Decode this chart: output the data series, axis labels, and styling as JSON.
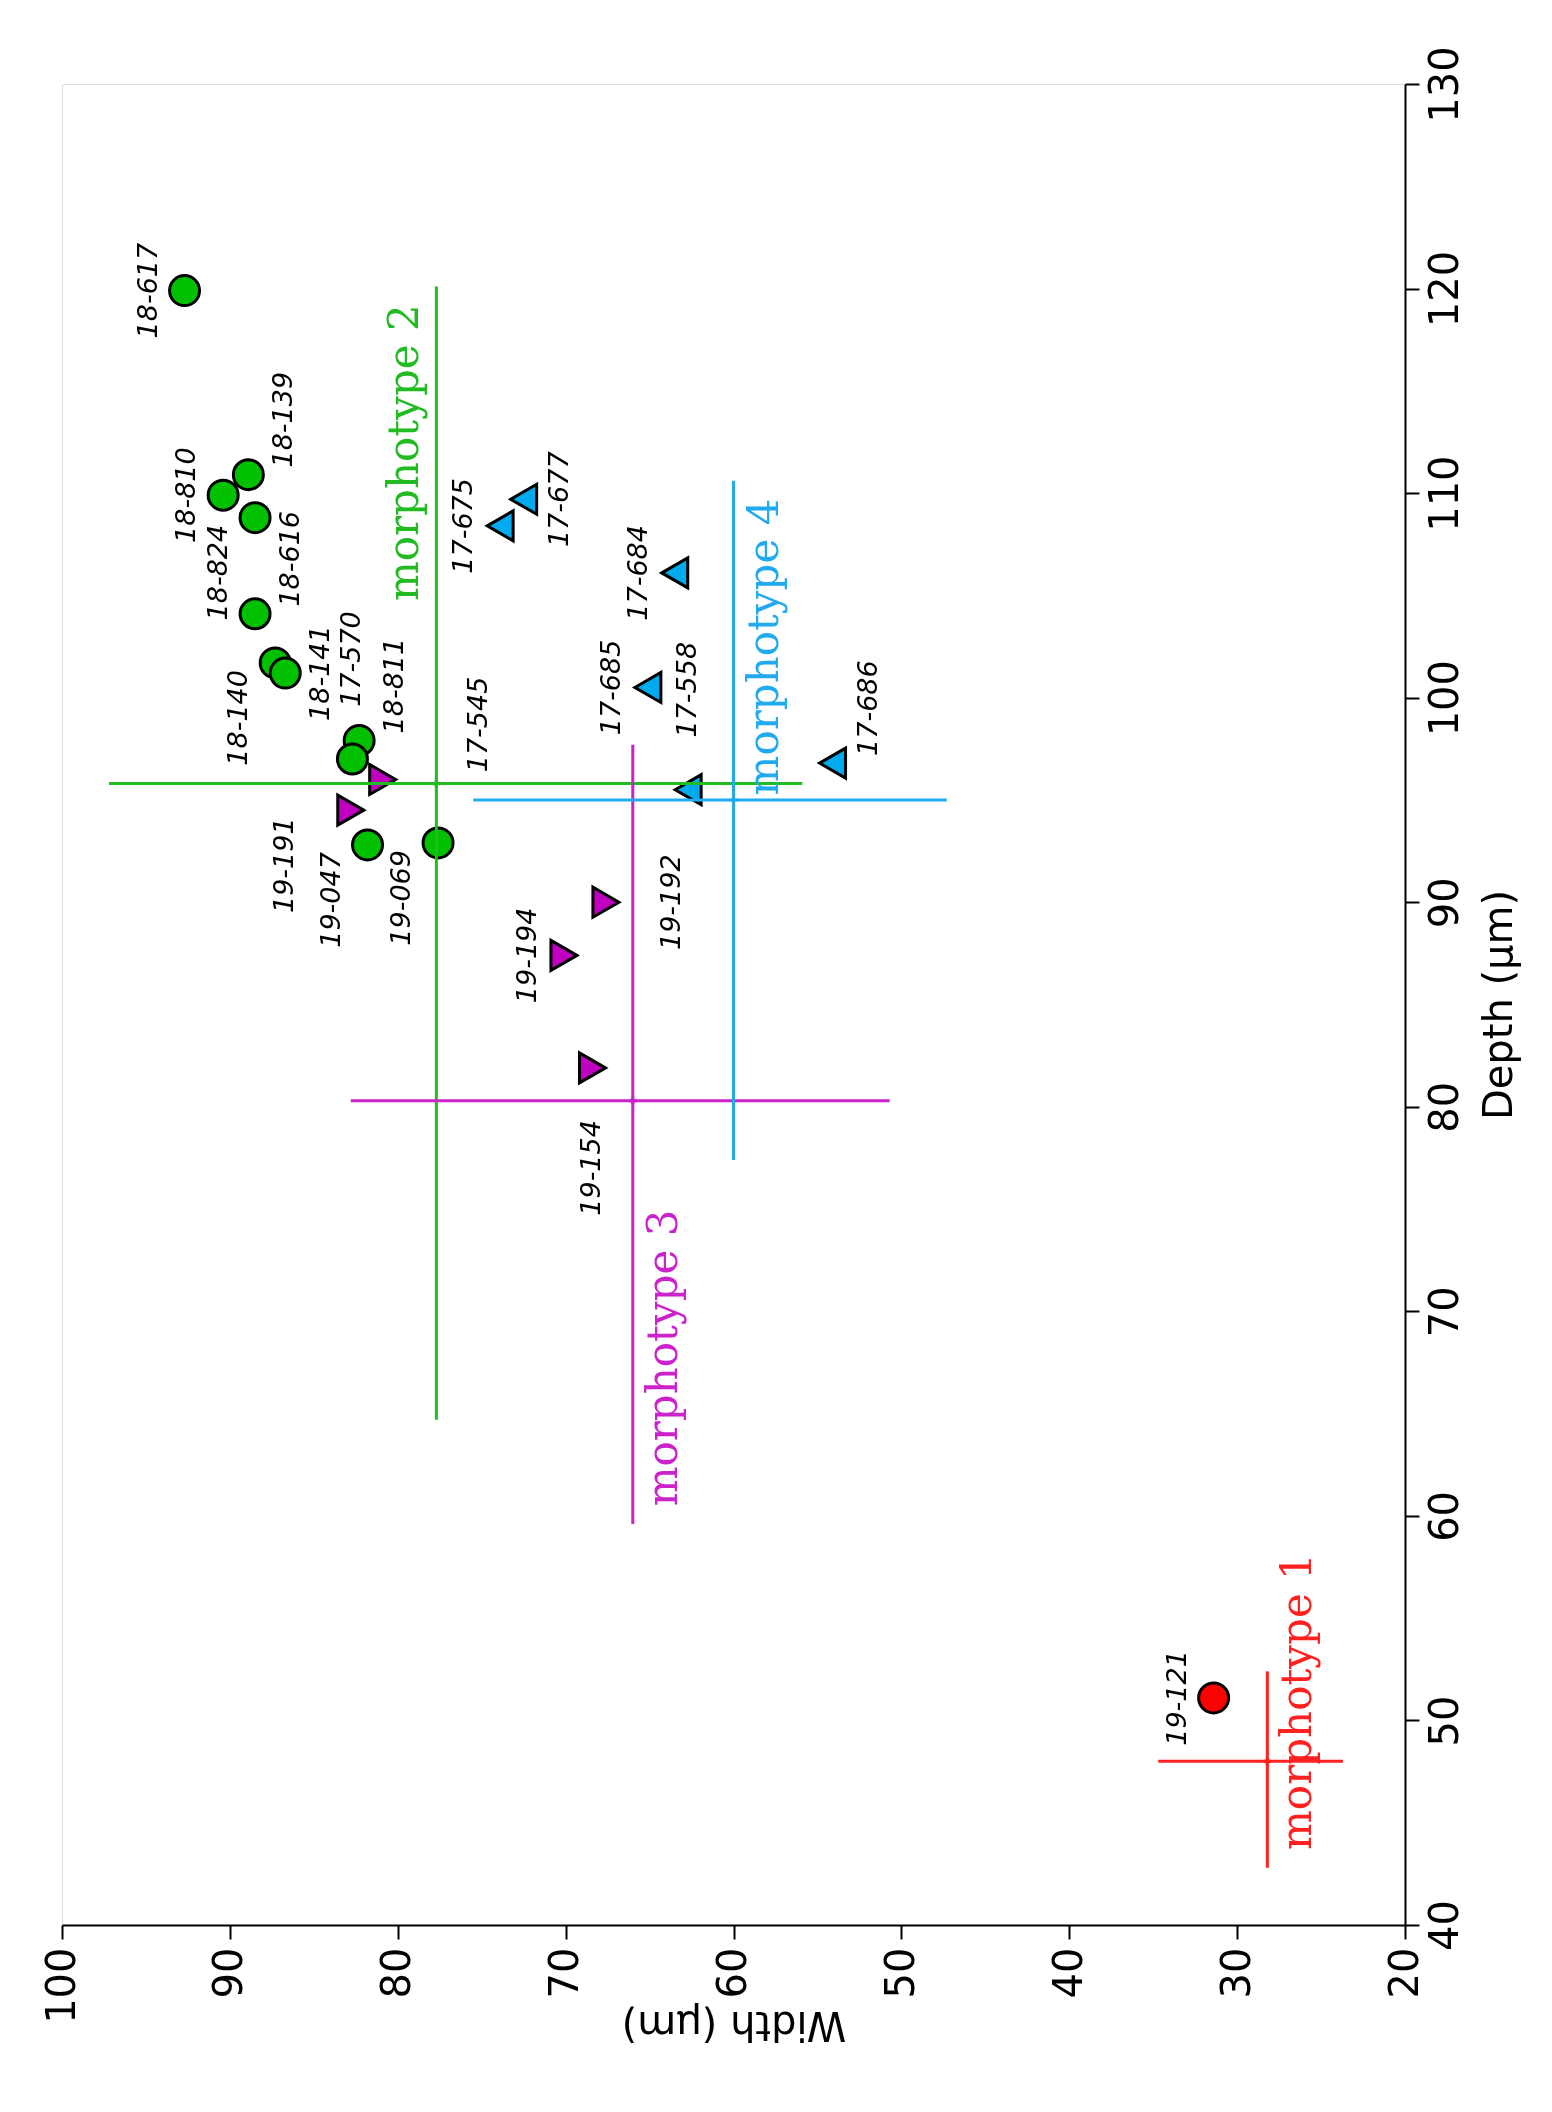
{
  "chart_data": {
    "type": "scatter",
    "xlabel": "Width (μm)",
    "ylabel": "Depth (μm)",
    "xlim": [
      100,
      20
    ],
    "xticks": [
      100,
      90,
      80,
      70,
      60,
      50,
      40,
      30,
      20
    ],
    "ylim": [
      40,
      130
    ],
    "yticks": [
      40,
      50,
      60,
      70,
      80,
      90,
      100,
      110,
      120,
      130
    ],
    "grid": false,
    "series": [
      {
        "color": "#00c000",
        "marker": "circle",
        "x": [
          92.7,
          90.4,
          88.9,
          88.5,
          88.5,
          87.3,
          86.7,
          82.3,
          82.7,
          81.8,
          77.6
        ],
        "values": [
          119.9,
          109.9,
          110.9,
          108.8,
          104.1,
          101.7,
          101.2,
          97.9,
          97.0,
          92.8,
          92.9
        ]
      },
      {
        "color": "#c000c0",
        "marker": "triangle-down",
        "x": [
          82.8,
          80.9,
          70.1,
          67.6,
          68.4
        ],
        "values": [
          94.5,
          96.0,
          87.4,
          90.0,
          81.9
        ]
      },
      {
        "color": "#00aaee",
        "marker": "triangle",
        "x": [
          73.9,
          72.5,
          63.5,
          65.1,
          62.7,
          54.1
        ],
        "values": [
          108.4,
          109.7,
          106.1,
          100.5,
          95.5,
          96.8
        ]
      },
      {
        "color": "#ff0000",
        "marker": "circle",
        "x": [
          31.4
        ],
        "values": [
          51.1
        ]
      },
      {
        "name": "morphotype 1",
        "color": "#ff2020",
        "marker": "cross",
        "x": [
          28.2
        ],
        "values": [
          48.0
        ],
        "errors": [
          [
            42.8,
            52.4
          ]
        ],
        "xerrors": [
          [
            23.7,
            34.7
          ]
        ]
      },
      {
        "name": "morphotype 2",
        "color": "#22bb22",
        "marker": "cross",
        "x": [
          77.7
        ],
        "values": [
          95.8
        ],
        "errors": [
          [
            64.7,
            120.1
          ]
        ],
        "xerrors": [
          [
            55.9,
            97.2
          ]
        ]
      },
      {
        "name": "morphotype 3",
        "color": "#cc22cc",
        "marker": "cross",
        "x": [
          66.0
        ],
        "values": [
          80.3
        ],
        "errors": [
          [
            59.6,
            97.7
          ]
        ],
        "xerrors": [
          [
            50.7,
            82.8
          ]
        ]
      },
      {
        "name": "morphotype 4",
        "color": "#22aaee",
        "marker": "cross",
        "x": [
          60.0
        ],
        "values": [
          95.0
        ],
        "errors": [
          [
            77.4,
            110.6
          ]
        ],
        "xerrors": [
          [
            47.3,
            75.5
          ]
        ]
      }
    ],
    "annotations": [
      {
        "text": "18-617",
        "x": 92.7,
        "y": 119.9
      },
      {
        "text": "18-810",
        "x": 90.4,
        "y": 109.9
      },
      {
        "text": "18-139",
        "x": 88.9,
        "y": 110.9
      },
      {
        "text": "18-824",
        "x": 88.5,
        "y": 108.8
      },
      {
        "text": "18-616",
        "x": 88.5,
        "y": 104.1
      },
      {
        "text": "18-140",
        "x": 87.3,
        "y": 101.7
      },
      {
        "text": "18-141",
        "x": 86.7,
        "y": 101.2
      },
      {
        "text": "18-811",
        "x": 82.3,
        "y": 97.9
      },
      {
        "text": "17-570",
        "x": 82.7,
        "y": 97.0
      },
      {
        "text": "19-047",
        "x": 81.8,
        "y": 92.8
      },
      {
        "text": "19-069",
        "x": 77.6,
        "y": 92.9
      },
      {
        "text": "19-191",
        "x": 82.8,
        "y": 94.5
      },
      {
        "text": "17-545",
        "x": 80.9,
        "y": 96.0
      },
      {
        "text": "19-194",
        "x": 70.1,
        "y": 87.4
      },
      {
        "text": "19-192",
        "x": 67.6,
        "y": 90.0
      },
      {
        "text": "19-154",
        "x": 68.4,
        "y": 81.9
      },
      {
        "text": "17-675",
        "x": 73.9,
        "y": 108.4
      },
      {
        "text": "17-677",
        "x": 72.5,
        "y": 109.7
      },
      {
        "text": "17-684",
        "x": 63.5,
        "y": 106.1
      },
      {
        "text": "17-685",
        "x": 65.1,
        "y": 100.5
      },
      {
        "text": "17-558",
        "x": 62.7,
        "y": 95.5
      },
      {
        "text": "17-686",
        "x": 54.1,
        "y": 96.8
      },
      {
        "text": "19-121",
        "x": 31.4,
        "y": 51.1
      }
    ]
  }
}
